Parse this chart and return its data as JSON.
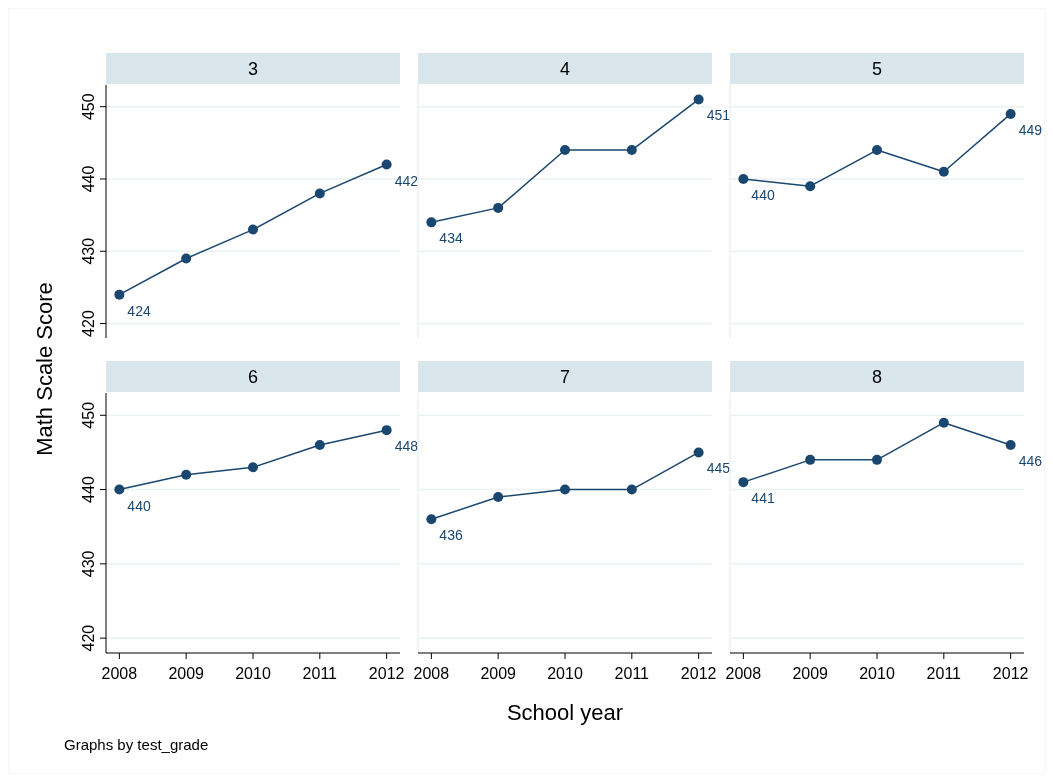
{
  "chart_data": [
    {
      "type": "line",
      "title": "3",
      "ylabel": "Math Scale Score",
      "x": [
        2008,
        2009,
        2010,
        2011,
        2012
      ],
      "xlim": [
        2007.8,
        2012.2
      ],
      "xticks": [
        2008,
        2009,
        2010,
        2011,
        2012
      ],
      "ylim": [
        418,
        453
      ],
      "yticks": [
        420,
        430,
        440,
        450
      ],
      "grid": "y",
      "marker": "circle",
      "tick_labels": "y",
      "series": [
        {
          "color": "#1a476f",
          "values": [
            424,
            429,
            433,
            438,
            442
          ],
          "value_labels": [
            "424",
            null,
            null,
            null,
            "442"
          ]
        }
      ]
    },
    {
      "type": "line",
      "title": "4",
      "x": [
        2008,
        2009,
        2010,
        2011,
        2012
      ],
      "xlim": [
        2007.8,
        2012.2
      ],
      "xticks": [
        2008,
        2009,
        2010,
        2011,
        2012
      ],
      "ylim": [
        418,
        453
      ],
      "yticks": [
        420,
        430,
        440,
        450
      ],
      "grid": "y",
      "marker": "circle",
      "tick_labels": false,
      "series": [
        {
          "color": "#1a476f",
          "values": [
            434,
            436,
            444,
            444,
            451
          ],
          "value_labels": [
            "434",
            null,
            null,
            null,
            "451"
          ]
        }
      ]
    },
    {
      "type": "line",
      "title": "5",
      "x": [
        2008,
        2009,
        2010,
        2011,
        2012
      ],
      "xlim": [
        2007.8,
        2012.2
      ],
      "xticks": [
        2008,
        2009,
        2010,
        2011,
        2012
      ],
      "ylim": [
        418,
        453
      ],
      "yticks": [
        420,
        430,
        440,
        450
      ],
      "grid": "y",
      "marker": "circle",
      "tick_labels": false,
      "series": [
        {
          "color": "#1a476f",
          "values": [
            440,
            439,
            444,
            441,
            449
          ],
          "value_labels": [
            "440",
            null,
            null,
            null,
            "449"
          ]
        }
      ]
    },
    {
      "type": "line",
      "title": "6",
      "annotations": [
        "Graphs by test_grade"
      ],
      "x": [
        2008,
        2009,
        2010,
        2011,
        2012
      ],
      "xlim": [
        2007.8,
        2012.2
      ],
      "xticks": [
        2008,
        2009,
        2010,
        2011,
        2012
      ],
      "ylim": [
        418,
        453
      ],
      "yticks": [
        420,
        430,
        440,
        450
      ],
      "grid": "y",
      "marker": "circle",
      "series": [
        {
          "color": "#1a476f",
          "values": [
            440,
            442,
            443,
            446,
            448
          ],
          "value_labels": [
            "440",
            null,
            null,
            null,
            "448"
          ]
        }
      ]
    },
    {
      "type": "line",
      "title": "7",
      "xlabel": "School year",
      "x": [
        2008,
        2009,
        2010,
        2011,
        2012
      ],
      "xlim": [
        2007.8,
        2012.2
      ],
      "xticks": [
        2008,
        2009,
        2010,
        2011,
        2012
      ],
      "ylim": [
        418,
        453
      ],
      "yticks": [
        420,
        430,
        440,
        450
      ],
      "grid": "y",
      "marker": "circle",
      "tick_labels": "x",
      "series": [
        {
          "color": "#1a476f",
          "values": [
            436,
            439,
            440,
            440,
            445
          ],
          "value_labels": [
            "436",
            null,
            null,
            null,
            "445"
          ]
        }
      ]
    },
    {
      "type": "line",
      "title": "8",
      "x": [
        2008,
        2009,
        2010,
        2011,
        2012
      ],
      "xlim": [
        2007.8,
        2012.2
      ],
      "xticks": [
        2008,
        2009,
        2010,
        2011,
        2012
      ],
      "ylim": [
        418,
        453
      ],
      "yticks": [
        420,
        430,
        440,
        450
      ],
      "grid": "y",
      "marker": "circle",
      "tick_labels": "x",
      "series": [
        {
          "color": "#1a476f",
          "values": [
            441,
            444,
            444,
            449,
            446
          ],
          "value_labels": [
            "441",
            null,
            null,
            null,
            "446"
          ]
        }
      ]
    }
  ]
}
